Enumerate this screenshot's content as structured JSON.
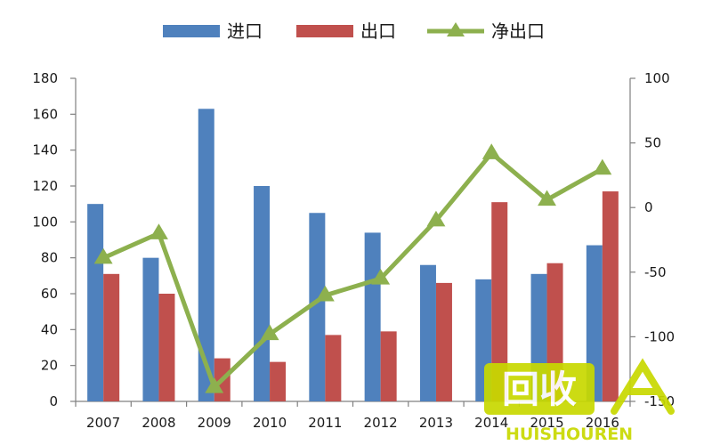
{
  "chart_data": {
    "type": "bar",
    "categories": [
      "2007",
      "2008",
      "2009",
      "2010",
      "2011",
      "2012",
      "2013",
      "2014",
      "2015",
      "2016"
    ],
    "series": [
      {
        "name": "进口",
        "type": "bar",
        "axis": "left",
        "color": "#4f81bd",
        "values": [
          110,
          80,
          163,
          120,
          105,
          94,
          76,
          68,
          71,
          87
        ]
      },
      {
        "name": "出口",
        "type": "bar",
        "axis": "left",
        "color": "#c0504d",
        "values": [
          71,
          60,
          24,
          22,
          37,
          39,
          66,
          111,
          77,
          117
        ]
      },
      {
        "name": "净出口",
        "type": "line",
        "marker": "triangle",
        "axis": "right",
        "color": "#8db04e",
        "values": [
          -39,
          -20,
          -139,
          -98,
          -68,
          -55,
          -10,
          42,
          6,
          30
        ]
      }
    ],
    "y_left": {
      "min": 0,
      "max": 180,
      "ticks": [
        "0",
        "20",
        "40",
        "60",
        "80",
        "100",
        "120",
        "140",
        "160",
        "180"
      ]
    },
    "y_right": {
      "min": -150,
      "max": 100,
      "ticks": [
        "-150",
        "-100",
        "-50",
        "0",
        "50",
        "100"
      ]
    },
    "grid": false,
    "legend_position": "top-center"
  },
  "watermark": {
    "logo_text": "回收",
    "brand_text": "HUISHOUREN",
    "color": "#c8d900"
  }
}
